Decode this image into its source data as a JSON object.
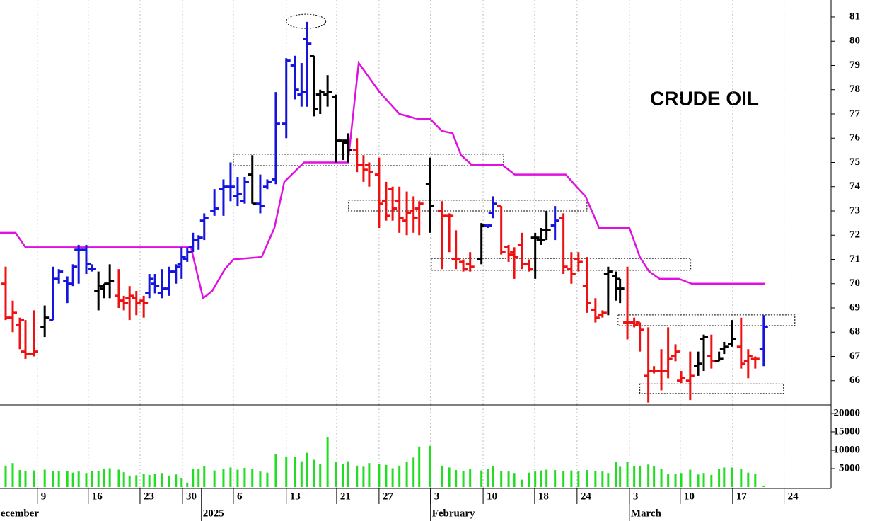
{
  "chart_data": {
    "type": "ohlc",
    "title": "CRUDE OIL",
    "x": [
      1,
      2.25,
      3.5,
      4.5,
      6,
      7.9,
      9.4,
      10.4,
      11.9,
      12.9,
      13.9,
      15.25,
      16.25,
      17.4,
      18.4,
      19.4,
      21,
      21.9,
      22.9,
      24.1,
      25.4,
      26.4,
      27.4,
      28.6,
      29.9,
      31.1,
      32.1,
      33.1,
      34.1,
      35.1,
      36.1,
      37.9,
      39.5,
      40.75,
      42,
      43.25,
      44.6,
      46,
      47.25,
      48.75,
      50.6,
      52.1,
      53.3,
      54.3,
      55.5,
      56.6,
      57.9,
      59.4,
      60.6,
      61.5,
      63.1,
      64.25,
      65.25,
      67,
      68.25,
      69.4,
      70.6,
      71.9,
      73.1,
      74.1,
      76,
      78.1,
      79.4,
      80.6,
      81.9,
      83.1,
      85.1,
      86.25,
      87.1,
      88.6,
      89.9,
      90.9,
      92.25,
      93.5,
      94.6,
      95.6,
      96.6,
      98.1,
      99.6,
      101,
      102.25,
      103.75,
      105.25,
      106.5,
      107.5,
      108.9,
      109.6,
      110.9,
      112.1,
      113.1,
      114.6,
      115.6,
      116.9,
      118.1,
      119.4,
      120.4,
      122,
      123.4,
      124.4,
      125.75,
      127.1,
      128,
      129.4,
      131,
      132.25,
      133.5,
      135
    ],
    "open": [
      70.0,
      68.6,
      68.3,
      67.2,
      67.1,
      68.2,
      68.5,
      70.2,
      70.1,
      70.0,
      71.4,
      71.4,
      70.6,
      69.7,
      69.8,
      70.0,
      69.5,
      69.3,
      69.4,
      69.4,
      69.3,
      69.6,
      70.0,
      69.6,
      69.8,
      70.5,
      70.8,
      71.0,
      71.5,
      71.8,
      72.6,
      73.0,
      73.9,
      74.0,
      73.6,
      73.4,
      74.5,
      73.3,
      74.0,
      74.3,
      76.6,
      79.0,
      77.8,
      80.1,
      79.4,
      77.8,
      77.8,
      77.7,
      75.9,
      75.8,
      75.5,
      74.9,
      74.9,
      74.5,
      73.4,
      73.9,
      73.4,
      72.6,
      73.0,
      73.1,
      74.1,
      73.0,
      72.8,
      71.0,
      70.9,
      70.8,
      71.0,
      72.4,
      72.9,
      73.2,
      71.5,
      71.3,
      71.6,
      70.8,
      71.9,
      71.8,
      72.2,
      72.4,
      72.7,
      70.6,
      71.0,
      69.9,
      68.9,
      68.7,
      70.4,
      70.3,
      69.8,
      68.4,
      68.4,
      68.4,
      66.2,
      66.4,
      66.4,
      66.4,
      67.0,
      66.0,
      66.0,
      66.6,
      67.7,
      67.0,
      66.8,
      67.3,
      67.5,
      67.4,
      66.8,
      66.9,
      67.3
    ],
    "high": [
      70.7,
      69.3,
      68.6,
      68.5,
      68.9,
      69.1,
      70.7,
      70.6,
      70.3,
      70.8,
      71.6,
      71.6,
      70.8,
      70.5,
      70.0,
      70.8,
      70.6,
      69.5,
      69.9,
      69.7,
      69.5,
      70.4,
      70.4,
      70.6,
      70.7,
      70.8,
      71.5,
      71.5,
      72.1,
      72.0,
      72.9,
      73.9,
      74.3,
      75.0,
      74.4,
      74.4,
      75.3,
      74.5,
      74.3,
      77.9,
      79.3,
      79.4,
      79.1,
      80.8,
      79.4,
      78.0,
      78.6,
      77.8,
      75.9,
      76.2,
      76.0,
      75.3,
      75.0,
      75.2,
      74.2,
      74.0,
      74.0,
      73.8,
      73.6,
      73.4,
      75.2,
      73.4,
      72.9,
      72.2,
      71.0,
      71.3,
      72.5,
      72.4,
      73.6,
      73.2,
      71.6,
      71.5,
      72.1,
      71.0,
      72.1,
      72.3,
      73.0,
      73.2,
      72.9,
      71.3,
      71.3,
      71.1,
      69.4,
      68.9,
      70.7,
      70.5,
      70.2,
      70.7,
      68.6,
      68.4,
      68.2,
      66.6,
      67.3,
      68.2,
      67.5,
      66.4,
      67.2,
      67.2,
      67.9,
      67.9,
      67.2,
      67.6,
      68.5,
      68.6,
      67.3,
      67.0,
      68.7
    ],
    "low": [
      68.5,
      68.0,
      67.3,
      66.9,
      67.0,
      67.8,
      68.5,
      70.0,
      69.2,
      69.9,
      70.0,
      70.4,
      70.5,
      68.9,
      69.4,
      69.4,
      69.0,
      68.9,
      68.5,
      68.7,
      68.6,
      69.4,
      69.6,
      69.4,
      69.5,
      70.0,
      70.2,
      70.9,
      71.3,
      71.4,
      71.8,
      72.8,
      72.8,
      73.4,
      73.2,
      73.3,
      73.3,
      72.9,
      73.9,
      74.1,
      76.0,
      77.6,
      77.3,
      77.3,
      76.9,
      77.0,
      77.3,
      75.0,
      75.1,
      75.0,
      74.6,
      74.2,
      74.0,
      72.3,
      72.6,
      72.6,
      72.1,
      72.0,
      72.1,
      72.0,
      72.1,
      70.6,
      71.3,
      70.6,
      70.5,
      70.5,
      70.8,
      72.3,
      72.7,
      71.2,
      70.9,
      70.2,
      70.6,
      70.5,
      70.2,
      71.6,
      71.8,
      71.8,
      70.4,
      70.0,
      70.5,
      68.8,
      68.4,
      68.6,
      68.7,
      69.3,
      69.2,
      67.7,
      68.2,
      67.2,
      65.1,
      66.3,
      65.6,
      66.1,
      66.8,
      65.9,
      65.2,
      66.2,
      66.4,
      66.5,
      66.8,
      67.1,
      67.4,
      66.5,
      66.1,
      66.5,
      66.6
    ],
    "close": [
      68.6,
      68.8,
      68.5,
      67.1,
      67.2,
      68.6,
      70.2,
      70.5,
      70.0,
      70.7,
      71.4,
      70.8,
      70.6,
      69.9,
      70.0,
      70.1,
      69.3,
      69.2,
      69.5,
      69.2,
      69.2,
      70.2,
      69.9,
      69.8,
      70.5,
      70.7,
      71.1,
      71.3,
      71.8,
      71.9,
      72.7,
      73.1,
      74.0,
      74.0,
      73.7,
      74.2,
      73.3,
      73.2,
      74.2,
      76.6,
      79.2,
      78.0,
      77.9,
      79.9,
      77.2,
      77.9,
      77.9,
      75.9,
      75.9,
      75.5,
      74.9,
      74.7,
      74.6,
      73.3,
      72.8,
      73.1,
      72.7,
      72.9,
      72.7,
      73.3,
      73.2,
      72.8,
      72.8,
      71.0,
      70.6,
      70.7,
      72.4,
      72.4,
      73.3,
      71.3,
      71.2,
      71.1,
      70.8,
      70.6,
      71.9,
      71.8,
      72.2,
      72.6,
      70.7,
      70.4,
      70.9,
      69.2,
      68.6,
      68.8,
      70.5,
      70.2,
      69.8,
      68.4,
      68.3,
      68.1,
      66.4,
      66.4,
      66.4,
      66.9,
      67.2,
      66.1,
      66.2,
      66.7,
      67.8,
      66.8,
      66.9,
      67.4,
      67.7,
      66.7,
      67.0,
      66.9,
      68.2
    ],
    "bar_colors": [
      "#ee1111",
      "#ee1111",
      "#ee1111",
      "#ee1111",
      "#ee1111",
      "#000000",
      "#1414dd",
      "#1414dd",
      "#1414dd",
      "#1414dd",
      "#1414dd",
      "#1414dd",
      "#1414dd",
      "#000000",
      "#000000",
      "#000000",
      "#ee1111",
      "#ee1111",
      "#ee1111",
      "#ee1111",
      "#ee1111",
      "#1414dd",
      "#1414dd",
      "#1414dd",
      "#1414dd",
      "#1414dd",
      "#1414dd",
      "#1414dd",
      "#1414dd",
      "#1414dd",
      "#1414dd",
      "#1414dd",
      "#1414dd",
      "#1414dd",
      "#1414dd",
      "#1414dd",
      "#000000",
      "#1414dd",
      "#1414dd",
      "#1414dd",
      "#1414dd",
      "#1414dd",
      "#1414dd",
      "#1414dd",
      "#000000",
      "#000000",
      "#000000",
      "#000000",
      "#000000",
      "#000000",
      "#ee1111",
      "#ee1111",
      "#ee1111",
      "#ee1111",
      "#ee1111",
      "#ee1111",
      "#ee1111",
      "#ee1111",
      "#ee1111",
      "#ee1111",
      "#000000",
      "#ee1111",
      "#ee1111",
      "#ee1111",
      "#ee1111",
      "#ee1111",
      "#000000",
      "#1414dd",
      "#1414dd",
      "#ee1111",
      "#ee1111",
      "#ee1111",
      "#ee1111",
      "#ee1111",
      "#000000",
      "#000000",
      "#000000",
      "#1414dd",
      "#ee1111",
      "#ee1111",
      "#ee1111",
      "#ee1111",
      "#ee1111",
      "#ee1111",
      "#000000",
      "#000000",
      "#000000",
      "#ee1111",
      "#ee1111",
      "#ee1111",
      "#ee1111",
      "#ee1111",
      "#ee1111",
      "#ee1111",
      "#ee1111",
      "#ee1111",
      "#ee1111",
      "#000000",
      "#000000",
      "#ee1111",
      "#000000",
      "#000000",
      "#000000",
      "#ee1111",
      "#ee1111",
      "#ee1111",
      "#1414dd"
    ],
    "volume": [
      5800,
      6500,
      4600,
      4300,
      4500,
      4700,
      4400,
      4300,
      4400,
      3900,
      4200,
      3800,
      4300,
      4400,
      4900,
      5100,
      4700,
      4000,
      3100,
      3200,
      3500,
      3300,
      3600,
      3800,
      3100,
      3400,
      2500,
      1200,
      4900,
      5000,
      5600,
      4500,
      4800,
      5300,
      4700,
      5200,
      4800,
      4200,
      3900,
      9000,
      8300,
      8200,
      7000,
      9300,
      7400,
      6200,
      13500,
      6800,
      6300,
      7000,
      5800,
      5500,
      6500,
      6200,
      6000,
      5100,
      5800,
      6900,
      8000,
      11000,
      11200,
      5800,
      5300,
      4600,
      4300,
      4800,
      4500,
      5000,
      5600,
      4400,
      4200,
      3800,
      2000,
      3900,
      4200,
      4500,
      4700,
      4600,
      4300,
      4500,
      4400,
      4600,
      4300,
      4200,
      3800,
      6800,
      5500,
      6800,
      5600,
      5800,
      6100,
      5700,
      4900,
      3500,
      3600,
      3800,
      4700,
      3400,
      3800,
      3300,
      4900,
      5300,
      5300,
      4800,
      3900,
      3600,
      400
    ],
    "volume_color": "#22dd22",
    "stop_line": {
      "color": "#e010e0",
      "x": [
        0,
        2.75,
        4.5,
        33.75,
        35.9,
        37.5,
        39.75,
        41.25,
        46.25,
        48.5,
        50.25,
        53.75,
        61.5,
        63.4,
        67.1,
        70.6,
        73.75,
        76,
        78.1,
        80,
        81.5,
        83.4,
        88.75,
        91,
        100,
        101.9,
        103.5,
        105.9,
        111.25,
        113.1,
        114.75,
        116.6,
        120,
        122.25,
        135.25
      ],
      "values": [
        72.1,
        72.1,
        71.5,
        71.5,
        69.4,
        69.7,
        70.6,
        71.0,
        71.1,
        72.3,
        74.2,
        75.0,
        75.0,
        79.1,
        77.9,
        77.0,
        76.8,
        76.8,
        76.3,
        76.2,
        75.3,
        74.9,
        74.9,
        74.5,
        74.5,
        74.0,
        73.6,
        72.3,
        72.3,
        71.1,
        70.5,
        70.2,
        70.2,
        70.0,
        70.0
      ]
    },
    "zones": [
      {
        "x": [
          41.25,
          89
        ],
        "y": [
          74.87,
          75.34
        ]
      },
      {
        "x": [
          61.6,
          103.75
        ],
        "y": [
          73.0,
          73.44
        ]
      },
      {
        "x": [
          76.25,
          122.1
        ],
        "y": [
          70.55,
          71.04
        ]
      },
      {
        "x": [
          109.25,
          140.5
        ],
        "y": [
          68.27,
          68.71
        ]
      },
      {
        "x": [
          113.1,
          138.5
        ],
        "y": [
          65.47,
          65.87
        ]
      }
    ],
    "highlight": {
      "x": 54.1,
      "y": 80.82
    },
    "xlim": [
      0,
      146.9
    ],
    "ylim": [
      65,
      81.7
    ],
    "yticks": [
      66,
      67,
      68,
      69,
      70,
      71,
      72,
      73,
      74,
      75,
      76,
      77,
      78,
      79,
      80,
      81
    ],
    "volume_ylim": [
      0,
      22300
    ],
    "volume_yticks": [
      5000,
      10000,
      15000,
      20000
    ],
    "xticks": [
      {
        "value": 6.6,
        "label": "9"
      },
      {
        "value": 15.6,
        "label": "16"
      },
      {
        "value": 24.75,
        "label": "23"
      },
      {
        "value": 32.25,
        "label": "30"
      },
      {
        "value": 41.25,
        "label": "6"
      },
      {
        "value": 50.6,
        "label": "13"
      },
      {
        "value": 59.5,
        "label": "21"
      },
      {
        "value": 67,
        "label": "27"
      },
      {
        "value": 76.1,
        "label": "3"
      },
      {
        "value": 85.4,
        "label": "10"
      },
      {
        "value": 94.5,
        "label": "18"
      },
      {
        "value": 102,
        "label": "24"
      },
      {
        "value": 111.25,
        "label": "3"
      },
      {
        "value": 120.25,
        "label": "10"
      },
      {
        "value": 129.5,
        "label": "17"
      },
      {
        "value": 138.6,
        "label": "24"
      }
    ],
    "month_ticks": [
      {
        "value": -1.5,
        "label": "December"
      },
      {
        "value": 35.6,
        "label": "2025"
      },
      {
        "value": 76.1,
        "label": "February"
      },
      {
        "value": 111.25,
        "label": "March"
      }
    ],
    "grid": true
  }
}
